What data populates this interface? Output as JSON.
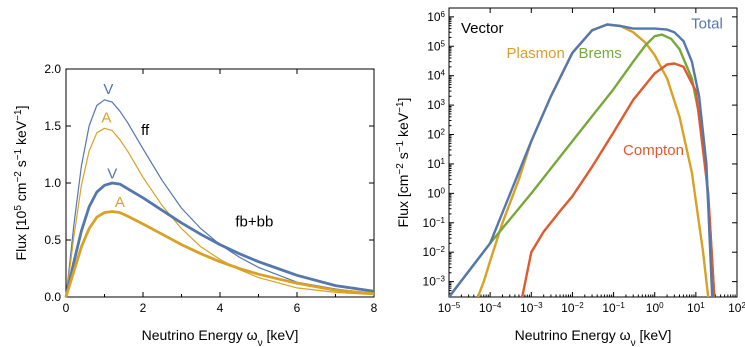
{
  "colors": {
    "blue": "#5477ad",
    "orange": "#d9a126",
    "green": "#79a83a",
    "red": "#df5a2c"
  },
  "chart_data": [
    {
      "type": "line",
      "xlabel": "Neutrino Energy ω_ν [keV]",
      "ylabel": "Flux [10⁵ cm⁻² s⁻¹ keV⁻¹]",
      "xlim": [
        0,
        8
      ],
      "ylim": [
        0,
        2.0
      ],
      "xticks": [
        "0",
        "2",
        "4",
        "6",
        "8"
      ],
      "yticks": [
        "0.0",
        "0.5",
        "1.0",
        "1.5",
        "2.0"
      ],
      "annotations": {
        "ff": "ff",
        "fbbb": "fb+bb"
      },
      "series": [
        {
          "name": "V",
          "group": "ff",
          "color": "#5477ad",
          "width": "thin",
          "x": [
            0,
            0.1,
            0.2,
            0.4,
            0.6,
            0.8,
            1.0,
            1.2,
            1.4,
            1.6,
            2.0,
            2.5,
            3.0,
            3.5,
            4.0,
            4.5,
            5.0,
            6.0,
            7.0,
            8.0
          ],
          "y": [
            0,
            0.3,
            0.62,
            1.15,
            1.5,
            1.68,
            1.73,
            1.71,
            1.63,
            1.53,
            1.3,
            1.02,
            0.78,
            0.6,
            0.46,
            0.35,
            0.26,
            0.13,
            0.07,
            0.03
          ]
        },
        {
          "name": "A",
          "group": "ff",
          "color": "#d9a126",
          "width": "thin",
          "x": [
            0,
            0.1,
            0.2,
            0.4,
            0.6,
            0.8,
            1.0,
            1.2,
            1.4,
            1.6,
            2.0,
            2.5,
            3.0,
            3.5,
            4.0,
            4.5,
            5.0,
            6.0,
            7.0,
            8.0
          ],
          "y": [
            0,
            0.25,
            0.52,
            0.98,
            1.28,
            1.44,
            1.48,
            1.46,
            1.38,
            1.28,
            1.05,
            0.8,
            0.6,
            0.44,
            0.33,
            0.24,
            0.17,
            0.08,
            0.04,
            0.02
          ]
        },
        {
          "name": "V",
          "group": "fb+bb",
          "color": "#5477ad",
          "width": "thick",
          "x": [
            0,
            0.2,
            0.4,
            0.6,
            0.8,
            1.0,
            1.2,
            1.4,
            1.6,
            2.0,
            2.5,
            3.0,
            3.5,
            4.0,
            4.5,
            5.0,
            5.5,
            6.0,
            7.0,
            8.0
          ],
          "y": [
            0,
            0.3,
            0.58,
            0.79,
            0.92,
            0.98,
            1.0,
            0.99,
            0.95,
            0.87,
            0.76,
            0.65,
            0.55,
            0.46,
            0.38,
            0.31,
            0.25,
            0.19,
            0.1,
            0.05
          ]
        },
        {
          "name": "A",
          "group": "fb+bb",
          "color": "#d9a126",
          "width": "thick",
          "x": [
            0,
            0.2,
            0.4,
            0.6,
            0.8,
            1.0,
            1.2,
            1.4,
            1.6,
            2.0,
            2.5,
            3.0,
            3.5,
            4.0,
            4.5,
            5.0,
            5.5,
            6.0,
            7.0,
            8.0
          ],
          "y": [
            0,
            0.22,
            0.44,
            0.6,
            0.7,
            0.74,
            0.75,
            0.74,
            0.71,
            0.64,
            0.55,
            0.46,
            0.38,
            0.31,
            0.25,
            0.2,
            0.16,
            0.12,
            0.06,
            0.03
          ]
        }
      ]
    },
    {
      "type": "line",
      "title": "Vector",
      "xlabel": "Neutrino Energy ω_ν [keV]",
      "ylabel": "Flux [cm⁻² s⁻¹ keV⁻¹]",
      "xscale": "log",
      "yscale": "log",
      "xlim": [
        1e-05,
        100
      ],
      "ylim": [
        0.0003,
        2000000
      ],
      "xticks": [
        {
          "exp": "-5",
          "v": 1e-05
        },
        {
          "exp": "-4",
          "v": 0.0001
        },
        {
          "exp": "-3",
          "v": 0.001
        },
        {
          "exp": "-2",
          "v": 0.01
        },
        {
          "exp": "-1",
          "v": 0.1
        },
        {
          "exp": "0",
          "v": 1
        },
        {
          "exp": "1",
          "v": 10
        },
        {
          "exp": "2",
          "v": 100
        }
      ],
      "yticks": [
        {
          "exp": "-3",
          "v": 0.001
        },
        {
          "exp": "-2",
          "v": 0.01
        },
        {
          "exp": "-1",
          "v": 0.1
        },
        {
          "exp": "0",
          "v": 1
        },
        {
          "exp": "1",
          "v": 10
        },
        {
          "exp": "2",
          "v": 100
        },
        {
          "exp": "3",
          "v": 1000.0
        },
        {
          "exp": "4",
          "v": 10000.0
        },
        {
          "exp": "5",
          "v": 100000.0
        },
        {
          "exp": "6",
          "v": 1000000.0
        }
      ],
      "series": [
        {
          "name": "Plasmon",
          "color": "#d9a126",
          "x": [
            5e-05,
            7e-05,
            0.0001,
            0.0002,
            0.0005,
            0.001,
            0.003,
            0.01,
            0.03,
            0.07,
            0.15,
            0.3,
            0.6,
            1,
            2,
            4,
            8,
            15,
            20
          ],
          "y": [
            0.0003,
            0.001,
            0.005,
            0.1,
            3,
            60,
            2000,
            60000,
            350000,
            550000,
            480000,
            300000,
            130000,
            50000,
            8000,
            400,
            5,
            0.01,
            0.0003
          ]
        },
        {
          "name": "Brems",
          "color": "#79a83a",
          "x": [
            1e-05,
            0.0001,
            0.001,
            0.01,
            0.1,
            0.3,
            0.6,
            1,
            1.5,
            2.5,
            4,
            8,
            15,
            22,
            28
          ],
          "y": [
            0.0003,
            0.02,
            1,
            60,
            3500,
            30000,
            110000,
            220000,
            250000,
            180000,
            80000,
            8000,
            100,
            0.1,
            0.0003
          ]
        },
        {
          "name": "Compton",
          "color": "#df5a2c",
          "x": [
            0.0006,
            0.001,
            0.002,
            0.005,
            0.01,
            0.03,
            0.1,
            0.3,
            1,
            2,
            3,
            5,
            10,
            20,
            28
          ],
          "y": [
            0.0003,
            0.01,
            0.05,
            0.25,
            0.8,
            8,
            120,
            1500,
            12000,
            24000,
            26000,
            20000,
            3000,
            1,
            0.0003
          ]
        },
        {
          "name": "Total",
          "color": "#5477ad",
          "x": [
            1e-05,
            0.0001,
            0.001,
            0.003,
            0.01,
            0.03,
            0.07,
            0.15,
            0.3,
            0.6,
            1,
            2,
            3,
            5,
            8,
            12,
            18,
            25
          ],
          "y": [
            0.0003,
            0.02,
            60,
            2000,
            60000,
            350000,
            550000,
            490000,
            400000,
            400000,
            400000,
            370000,
            300000,
            150000,
            30000,
            2000,
            10,
            0.0003
          ]
        }
      ]
    }
  ]
}
